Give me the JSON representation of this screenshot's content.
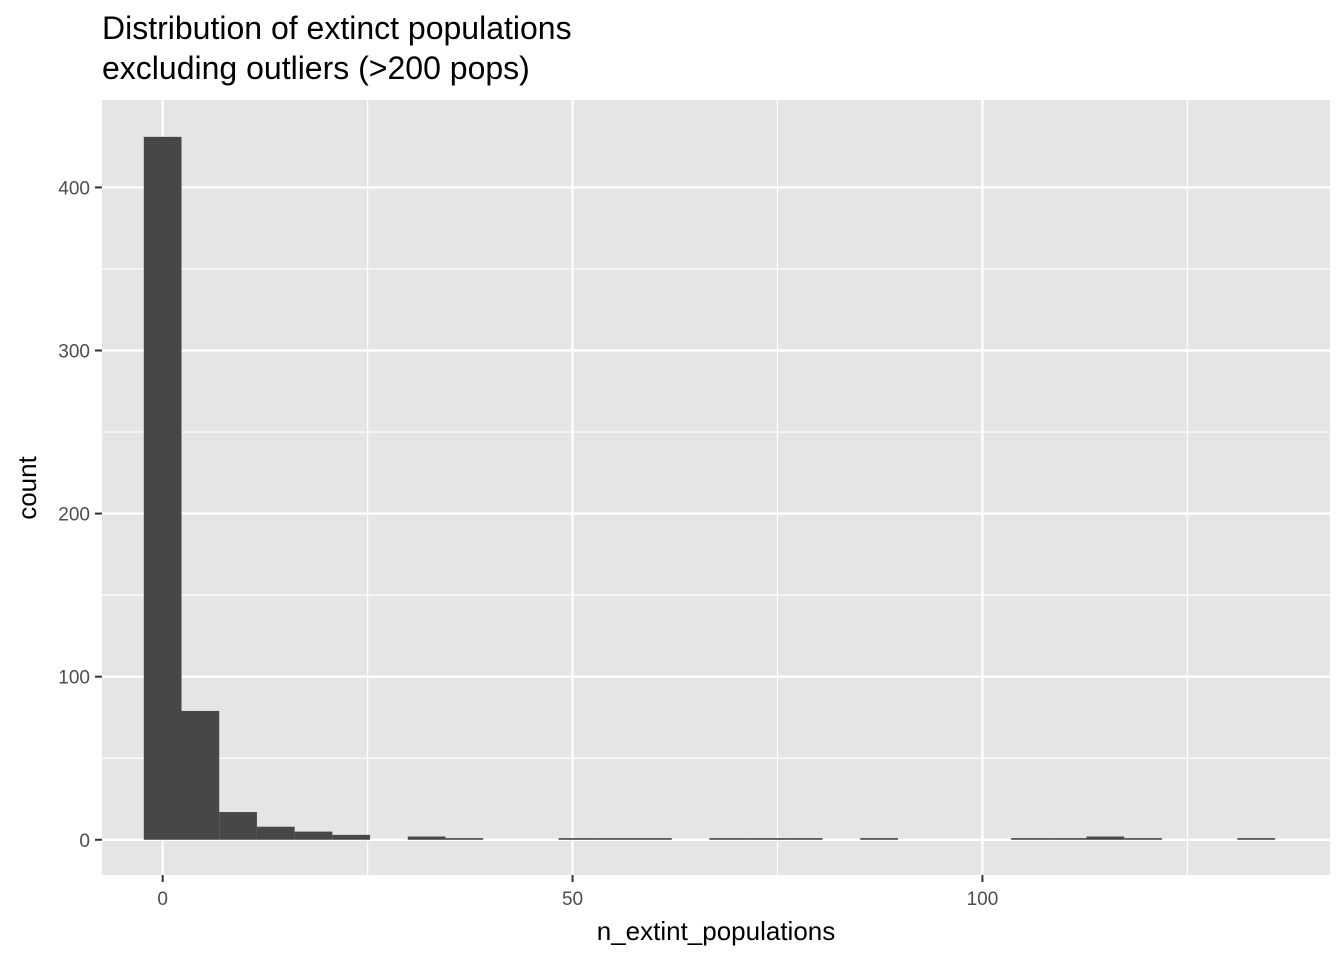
{
  "chart_data": {
    "type": "bar",
    "title": "Distribution of extinct populations",
    "subtitle": "excluding outliers (>200 pops)",
    "xlabel": "n_extint_populations",
    "ylabel": "count",
    "xlim": [
      -7.4,
      142.4
    ],
    "ylim": [
      -21.6,
      453.6
    ],
    "binwidth": 4.6,
    "x_ticks": [
      0,
      50,
      100
    ],
    "x_minor_ticks": [
      25,
      75,
      125
    ],
    "y_ticks": [
      0,
      100,
      200,
      300,
      400
    ],
    "y_minor_ticks": [
      50,
      150,
      250,
      350
    ],
    "bin_centers": [
      0,
      4.6,
      9.2,
      13.8,
      18.4,
      23.0,
      32.2,
      36.8,
      50.6,
      55.2,
      59.8,
      69.0,
      73.6,
      78.2,
      87.4,
      105.8,
      110.4,
      115.0,
      119.6,
      133.4
    ],
    "values": [
      431,
      79,
      17,
      8,
      5,
      3,
      2,
      1,
      1,
      1,
      1,
      1,
      1,
      1,
      1,
      1,
      1,
      2,
      1,
      1
    ],
    "grid": true,
    "bar_color": "#474747",
    "panel_color": "#e5e5e5",
    "grid_color": "#ffffff"
  }
}
